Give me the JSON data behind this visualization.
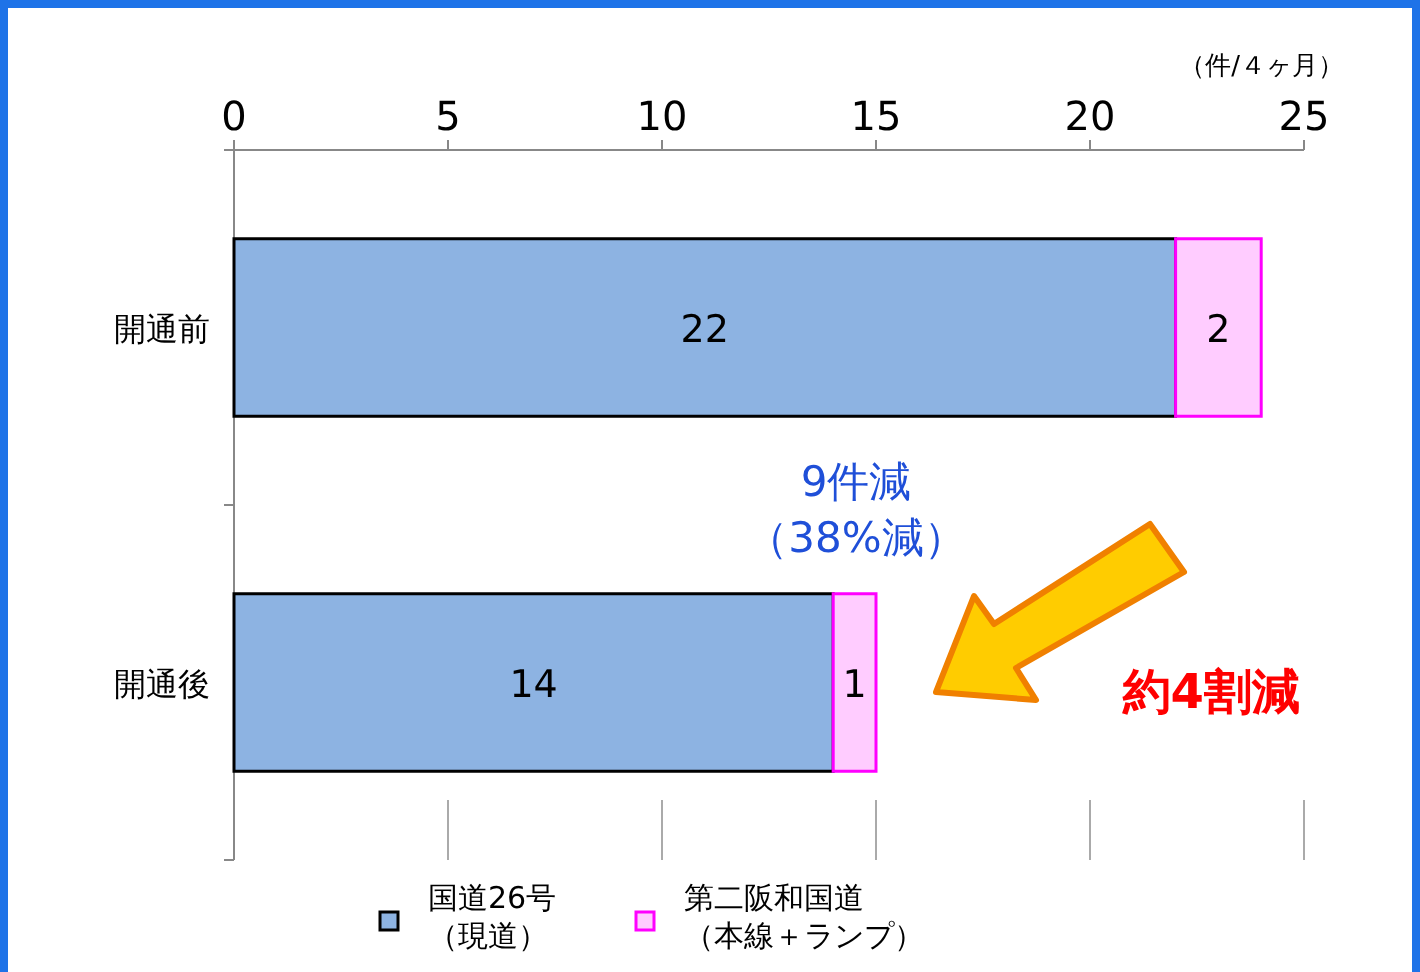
{
  "chart_data": {
    "type": "bar",
    "orientation": "horizontal",
    "stacked": true,
    "categories": [
      "開通前",
      "開通後"
    ],
    "series": [
      {
        "name": "国道26号（現道）",
        "color": "#8db3e2",
        "values": [
          22,
          14
        ]
      },
      {
        "name": "第二阪和国道（本線＋ランプ）",
        "color": "#ffccff",
        "values": [
          2,
          1
        ]
      }
    ],
    "xlim": [
      0,
      25
    ],
    "xticks": [
      0,
      5,
      10,
      15,
      20,
      25
    ],
    "xlabel": "（件/４ヶ月）",
    "data_labels": true,
    "grid": false,
    "legend": "bottom",
    "annotations": [
      "9件減（38%減）",
      "約4割減"
    ]
  }
}
